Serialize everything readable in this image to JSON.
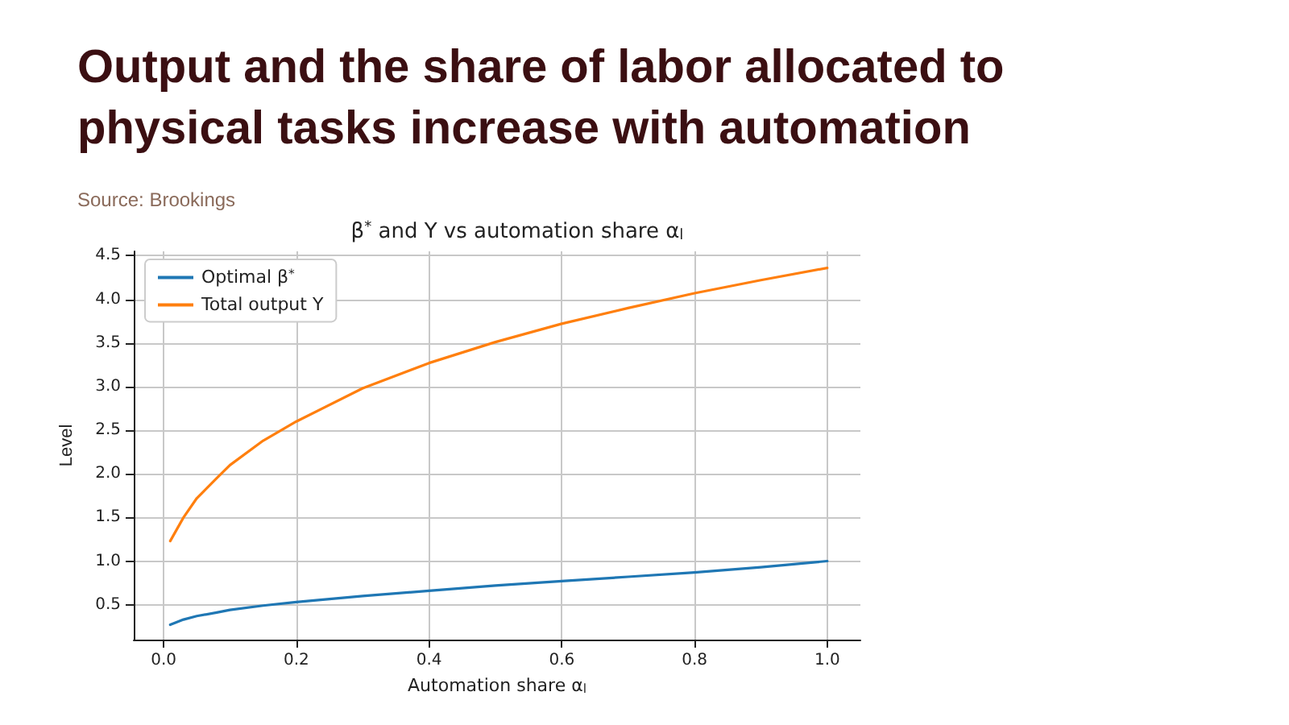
{
  "chart_data": {
    "type": "line",
    "title": "Output and the share of labor allocated to physical tasks increase with automation",
    "subtitle": "β$^{*}$ and Y vs automation share α$_{l}$",
    "annotations": [
      "Source: Brookings"
    ],
    "xlabel": "Automation share α$_{l}$",
    "ylabel": "Level",
    "x": [
      0.01,
      0.03,
      0.05,
      0.08,
      0.1,
      0.15,
      0.2,
      0.3,
      0.4,
      0.5,
      0.6,
      0.7,
      0.8,
      0.9,
      1.0
    ],
    "series": [
      {
        "name": "Optimal β$^{*}$",
        "color": "#1f77b4",
        "values": [
          0.27,
          0.33,
          0.37,
          0.41,
          0.44,
          0.49,
          0.53,
          0.6,
          0.66,
          0.72,
          0.77,
          0.82,
          0.87,
          0.93,
          1.0
        ]
      },
      {
        "name": "Total output Y",
        "color": "#ff7f0e",
        "values": [
          1.23,
          1.5,
          1.72,
          1.95,
          2.1,
          2.38,
          2.6,
          2.98,
          3.27,
          3.51,
          3.72,
          3.9,
          4.07,
          4.22,
          4.36
        ]
      }
    ],
    "xlim": [
      -0.045,
      1.05
    ],
    "xticks": [
      {
        "value": 0,
        "label": "0.0"
      },
      0.2,
      0.4,
      0.6,
      0.8,
      {
        "value": 1,
        "label": "1.0"
      }
    ],
    "ylim": [
      0.1,
      4.55
    ],
    "yticks": [
      0.5,
      {
        "value": 1,
        "label": "1.0"
      },
      1.5,
      {
        "value": 2,
        "label": "2.0"
      },
      2.5,
      {
        "value": 3,
        "label": "3.0"
      },
      3.5,
      {
        "value": 4,
        "label": "4.0"
      },
      4.5
    ],
    "grid": true,
    "legend": "top left",
    "line_style": "solid",
    "marker": "none"
  }
}
